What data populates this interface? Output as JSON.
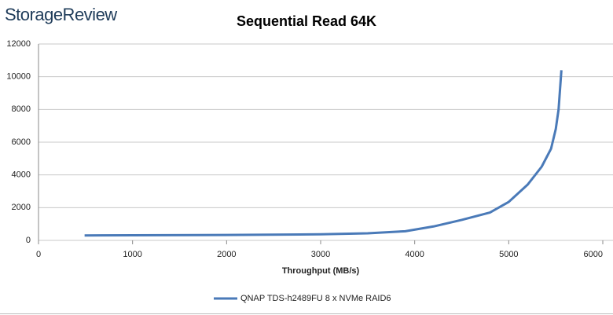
{
  "brand": "StorageReview",
  "chart_data": {
    "type": "line",
    "title": "Sequential Read 64K",
    "x_label": "Throughput (MB/s)",
    "x": [
      490,
      1000,
      2000,
      3000,
      3500,
      3900,
      4200,
      4500,
      4800,
      5000,
      5200,
      5350,
      5450,
      5500,
      5530,
      5560
    ],
    "series": [
      {
        "name": "QNAP TDS-h2489FU 8 x NVMe RAID6",
        "color": "#4a7ab8",
        "values": [
          300,
          310,
          330,
          370,
          430,
          560,
          850,
          1250,
          1700,
          2350,
          3400,
          4500,
          5600,
          6800,
          8000,
          10400
        ]
      }
    ],
    "xlim": [
      0,
      6000
    ],
    "xticks": [
      0,
      1000,
      2000,
      3000,
      4000,
      5000,
      6000
    ],
    "ylim": [
      0,
      12000
    ],
    "yticks": [
      0,
      2000,
      4000,
      6000,
      8000,
      10000,
      12000
    ],
    "grid": true,
    "legend": "bottom"
  }
}
